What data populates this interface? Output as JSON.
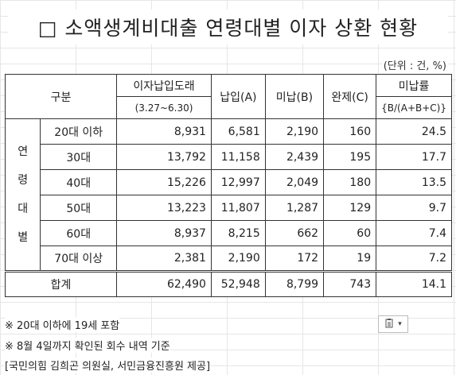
{
  "title": "□ 소액생계비대출 연령대별 이자 상환 현황",
  "unit": "(단위 : 건, %)",
  "headers": {
    "category": "구분",
    "interest_paid": "이자납입도래",
    "interest_period": "(3.27~6.30)",
    "paid": "납입(A)",
    "unpaid": "미납(B)",
    "completed": "완제(C)",
    "rate": "미납률",
    "rate_formula": "{B/(A+B+C)}"
  },
  "row_group_label": [
    "연",
    "령",
    "대",
    "별"
  ],
  "rows": [
    {
      "age": "20대 이하",
      "due": "8,931",
      "paid": "6,581",
      "unpaid": "2,190",
      "completed": "160",
      "rate": "24.5"
    },
    {
      "age": "30대",
      "due": "13,792",
      "paid": "11,158",
      "unpaid": "2,439",
      "completed": "195",
      "rate": "17.7"
    },
    {
      "age": "40대",
      "due": "15,226",
      "paid": "12,997",
      "unpaid": "2,049",
      "completed": "180",
      "rate": "13.5"
    },
    {
      "age": "50대",
      "due": "13,223",
      "paid": "11,807",
      "unpaid": "1,287",
      "completed": "129",
      "rate": "9.7"
    },
    {
      "age": "60대",
      "due": "8,937",
      "paid": "8,215",
      "unpaid": "662",
      "completed": "60",
      "rate": "7.4"
    },
    {
      "age": "70대 이상",
      "due": "2,381",
      "paid": "2,190",
      "unpaid": "172",
      "completed": "19",
      "rate": "7.2"
    }
  ],
  "total": {
    "label": "합계",
    "due": "62,490",
    "paid": "52,948",
    "unpaid": "8,799",
    "completed": "743",
    "rate": "14.1"
  },
  "notes": [
    "※ 20대 이하에 19세 포함",
    "※ 8월 4일까지 확인된 회수 내역 기준",
    "[국민의힘 김희곤 의원실, 서민금융진흥원 제공]"
  ],
  "paste_icon": "paste-options-icon"
}
